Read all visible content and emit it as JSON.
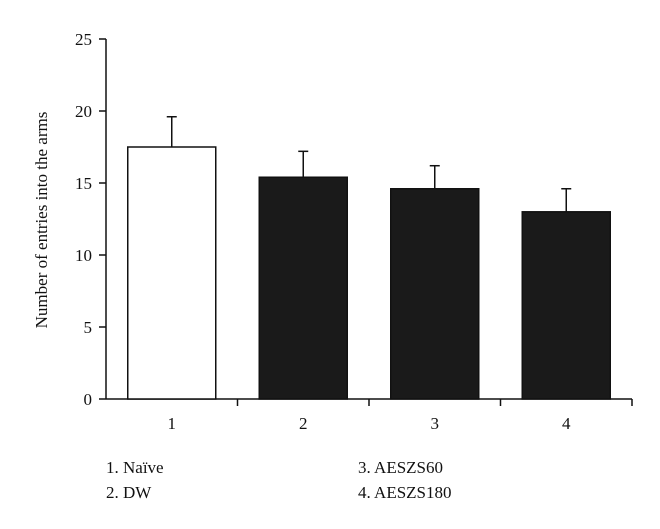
{
  "chart_data": {
    "type": "bar",
    "categories": [
      "1",
      "2",
      "3",
      "4"
    ],
    "values": [
      17.5,
      15.4,
      14.6,
      13.0
    ],
    "error_upper": [
      19.6,
      17.2,
      16.2,
      14.6
    ],
    "bar_fills": [
      "#ffffff",
      "#1a1a1a",
      "#1a1a1a",
      "#1a1a1a"
    ],
    "ylabel": "Number of entries into the arms",
    "xlabel": "",
    "ylim": [
      0,
      25
    ],
    "yticks": [
      0,
      5,
      10,
      15,
      20,
      25
    ],
    "grid": false,
    "legend_placement": "bottom"
  },
  "legend": {
    "items": [
      "1. Naïve",
      "2. DW",
      "3. AESZS60",
      "4. AESZS180"
    ]
  }
}
